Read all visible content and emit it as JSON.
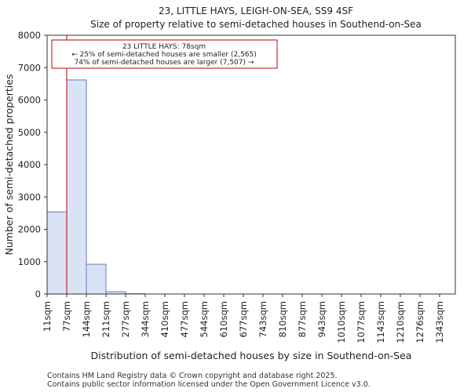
{
  "chart_data": {
    "type": "bar",
    "title": "23, LITTLE HAYS, LEIGH-ON-SEA, SS9 4SF",
    "subtitle": "Size of property relative to semi-detached houses in Southend-on-Sea",
    "xlabel": "Distribution of semi-detached houses by size in Southend-on-Sea",
    "ylabel": "Number of semi-detached properties",
    "categories": [
      "11sqm",
      "77sqm",
      "144sqm",
      "211sqm",
      "277sqm",
      "344sqm",
      "410sqm",
      "477sqm",
      "544sqm",
      "610sqm",
      "677sqm",
      "743sqm",
      "810sqm",
      "877sqm",
      "943sqm",
      "1010sqm",
      "1077sqm",
      "1143sqm",
      "1210sqm",
      "1276sqm",
      "1343sqm"
    ],
    "values": [
      2540,
      6620,
      920,
      70,
      8,
      3,
      2,
      1,
      0,
      0,
      0,
      0,
      0,
      0,
      0,
      0,
      0,
      0,
      0,
      0,
      0
    ],
    "ylim": [
      0,
      8000
    ],
    "yticks": [
      0,
      1000,
      2000,
      3000,
      4000,
      5000,
      6000,
      7000,
      8000
    ],
    "bar_color": "#dae3f6",
    "bar_edge_color": "#5b7bc4",
    "marker": {
      "value_index": 1.0,
      "color": "#c00000"
    },
    "annotation": {
      "line1": "23 LITTLE HAYS: 78sqm",
      "line2": "← 25% of semi-detached houses are smaller (2,565)",
      "line3": "74% of semi-detached houses are larger (7,507) →"
    }
  },
  "footer": {
    "line1": "Contains HM Land Registry data © Crown copyright and database right 2025.",
    "line2": "Contains public sector information licensed under the Open Government Licence v3.0."
  }
}
